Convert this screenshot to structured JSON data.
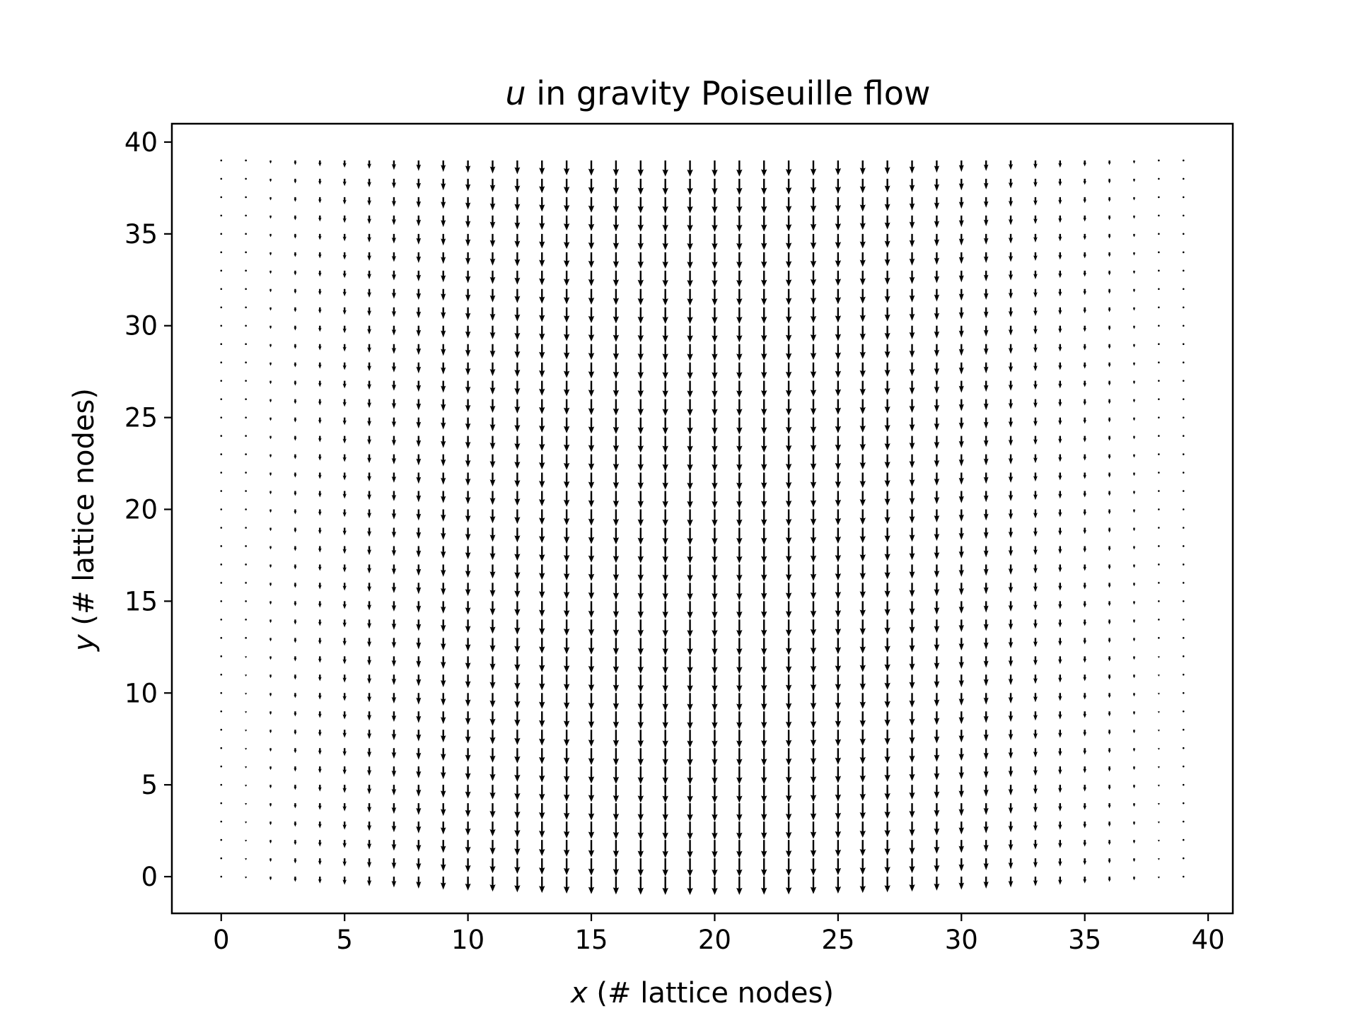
{
  "chart_data": {
    "type": "quiver",
    "title": {
      "symbol": "u",
      "text": " in gravity Poiseuille flow"
    },
    "xlabel": {
      "symbol": "x",
      "text": " (# lattice nodes)"
    },
    "ylabel": {
      "symbol": "y",
      "text": " (# lattice nodes)"
    },
    "xlim": [
      -2,
      41
    ],
    "ylim": [
      -2,
      41
    ],
    "xticks": [
      "0",
      "5",
      "10",
      "15",
      "20",
      "25",
      "30",
      "35",
      "40"
    ],
    "yticks": [
      "0",
      "5",
      "10",
      "15",
      "20",
      "25",
      "30",
      "35",
      "40"
    ],
    "grid": false,
    "grid_x": {
      "start": 0,
      "end": 39,
      "step": 1
    },
    "grid_y": {
      "start": 0,
      "end": 39,
      "step": 1
    },
    "vector_field": {
      "description": "velocity u points in -y direction; magnitude parabolic in x, zero at x=0 and x=39, maximum near x=19.5; slightly decreasing with y",
      "u_x": 0,
      "u_y_profile": "parabolic",
      "max_length_x_index": 19.5,
      "color": "#000000"
    }
  }
}
